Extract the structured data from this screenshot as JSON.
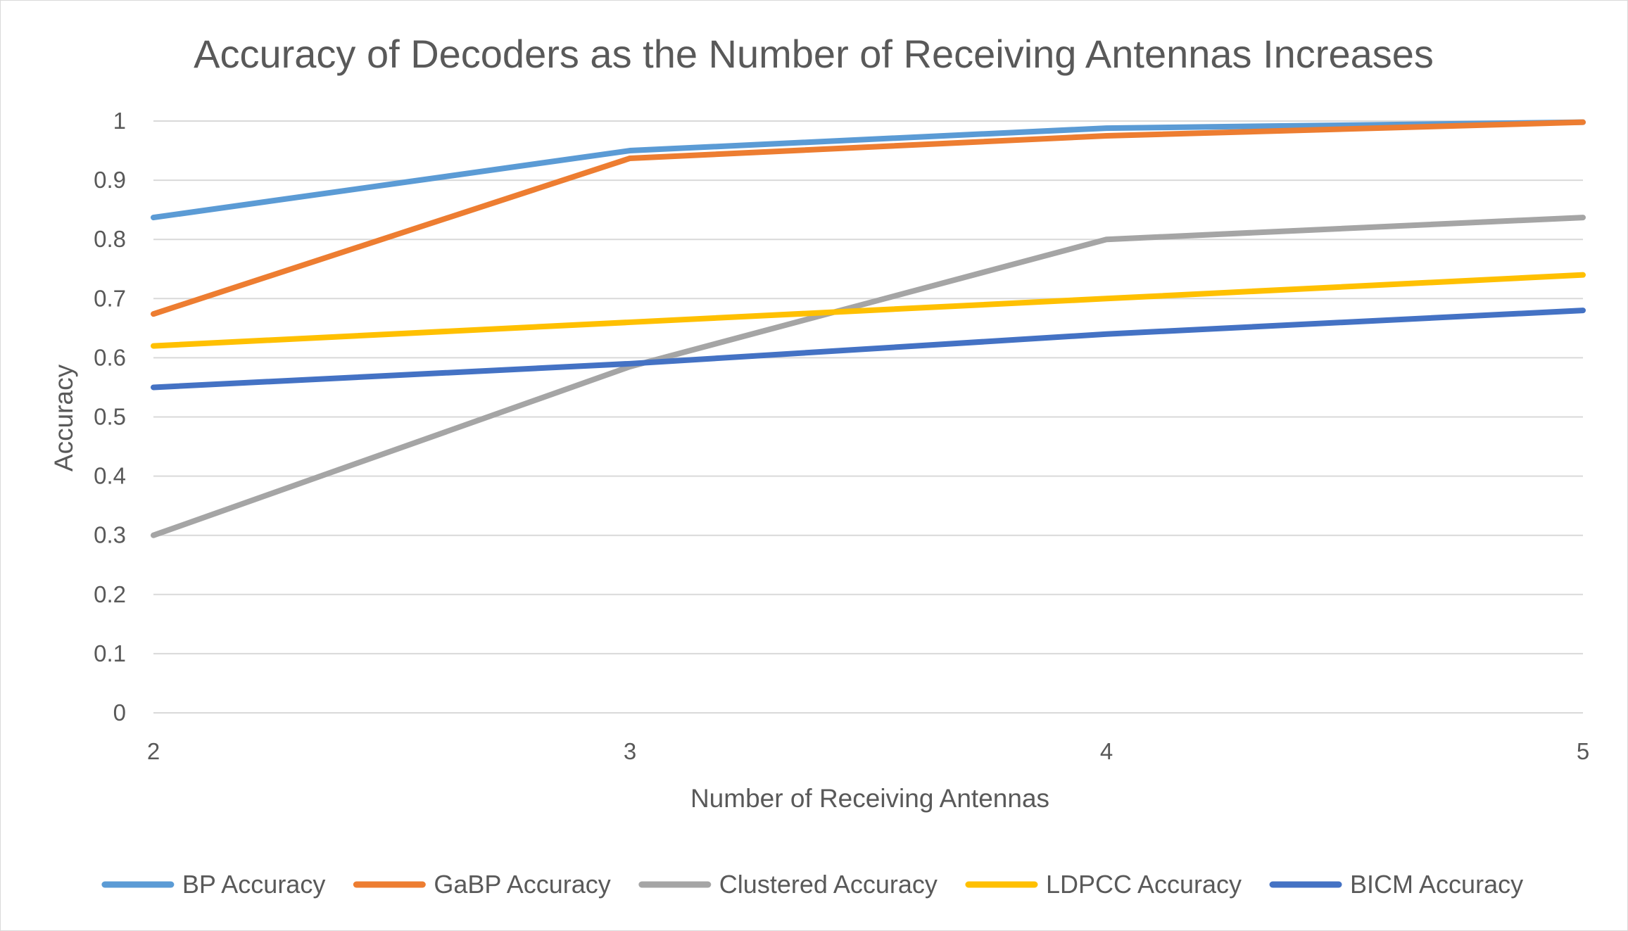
{
  "chart_data": {
    "type": "line",
    "title": "Accuracy of Decoders as the Number of Receiving Antennas Increases",
    "xlabel": "Number of Receiving Antennas",
    "ylabel": "Accuracy",
    "x": [
      2,
      3,
      4,
      5
    ],
    "x_tick_labels": [
      "2",
      "3",
      "4",
      "5"
    ],
    "ylim": [
      0,
      1
    ],
    "y_tick_values": [
      0,
      0.1,
      0.2,
      0.3,
      0.4,
      0.5,
      0.6,
      0.7,
      0.8,
      0.9,
      1
    ],
    "y_tick_labels": [
      "0",
      "0.1",
      "0.2",
      "0.3",
      "0.4",
      "0.5",
      "0.6",
      "0.7",
      "0.8",
      "0.9",
      "1"
    ],
    "grid": true,
    "legend_position": "bottom",
    "series": [
      {
        "name": "BP Accuracy",
        "color": "#5B9BD5",
        "values": [
          0.837,
          0.95,
          0.988,
          0.998
        ]
      },
      {
        "name": "GaBP Accuracy",
        "color": "#ED7D31",
        "values": [
          0.674,
          0.937,
          0.975,
          0.998
        ]
      },
      {
        "name": "Clustered Accuracy",
        "color": "#A5A5A5",
        "values": [
          0.3,
          0.585,
          0.8,
          0.837
        ]
      },
      {
        "name": "LDPCC Accuracy",
        "color": "#FFC000",
        "values": [
          0.62,
          0.66,
          0.7,
          0.74
        ]
      },
      {
        "name": "BICM Accuracy",
        "color": "#4472C4",
        "values": [
          0.55,
          0.59,
          0.64,
          0.68
        ]
      }
    ]
  }
}
